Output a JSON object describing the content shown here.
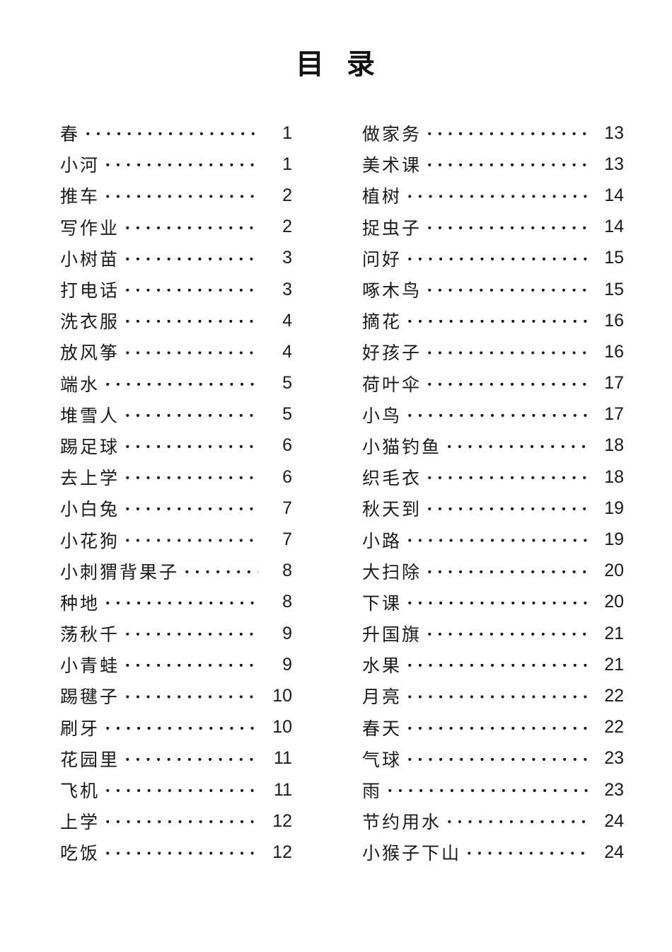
{
  "colors": {
    "background": "#ffffff",
    "text": "#1a1a1a"
  },
  "toc": {
    "title": "目 录",
    "columns": [
      {
        "name": "left",
        "entries": [
          {
            "title": "春",
            "page": "1"
          },
          {
            "title": "小河",
            "page": "1"
          },
          {
            "title": "推车",
            "page": "2"
          },
          {
            "title": "写作业",
            "page": "2"
          },
          {
            "title": "小树苗",
            "page": "3"
          },
          {
            "title": "打电话",
            "page": "3"
          },
          {
            "title": "洗衣服",
            "page": "4"
          },
          {
            "title": "放风筝",
            "page": "4"
          },
          {
            "title": "端水",
            "page": "5"
          },
          {
            "title": "堆雪人",
            "page": "5"
          },
          {
            "title": "踢足球",
            "page": "6"
          },
          {
            "title": "去上学",
            "page": "6"
          },
          {
            "title": "小白兔",
            "page": "7"
          },
          {
            "title": "小花狗",
            "page": "7"
          },
          {
            "title": "小刺猬背果子",
            "page": "8"
          },
          {
            "title": "种地",
            "page": "8"
          },
          {
            "title": "荡秋千",
            "page": "9"
          },
          {
            "title": "小青蛙",
            "page": "9"
          },
          {
            "title": "踢毽子",
            "page": "10"
          },
          {
            "title": "刷牙",
            "page": "10"
          },
          {
            "title": "花园里",
            "page": "11"
          },
          {
            "title": "飞机",
            "page": "11"
          },
          {
            "title": "上学",
            "page": "12"
          },
          {
            "title": "吃饭",
            "page": "12"
          }
        ]
      },
      {
        "name": "right",
        "entries": [
          {
            "title": "做家务",
            "page": "13"
          },
          {
            "title": "美术课",
            "page": "13"
          },
          {
            "title": "植树",
            "page": "14"
          },
          {
            "title": "捉虫子",
            "page": "14"
          },
          {
            "title": "问好",
            "page": "15"
          },
          {
            "title": "啄木鸟",
            "page": "15"
          },
          {
            "title": "摘花",
            "page": "16"
          },
          {
            "title": "好孩子",
            "page": "16"
          },
          {
            "title": "荷叶伞",
            "page": "17"
          },
          {
            "title": "小鸟",
            "page": "17"
          },
          {
            "title": "小猫钓鱼",
            "page": "18"
          },
          {
            "title": "织毛衣",
            "page": "18"
          },
          {
            "title": "秋天到",
            "page": "19"
          },
          {
            "title": "小路",
            "page": "19"
          },
          {
            "title": "大扫除",
            "page": "20"
          },
          {
            "title": "下课",
            "page": "20"
          },
          {
            "title": "升国旗",
            "page": "21"
          },
          {
            "title": "水果",
            "page": "21"
          },
          {
            "title": "月亮",
            "page": "22"
          },
          {
            "title": "春天",
            "page": "22"
          },
          {
            "title": "气球",
            "page": "23"
          },
          {
            "title": "雨",
            "page": "23"
          },
          {
            "title": "节约用水",
            "page": "24"
          },
          {
            "title": "小猴子下山",
            "page": "24"
          }
        ]
      }
    ]
  }
}
